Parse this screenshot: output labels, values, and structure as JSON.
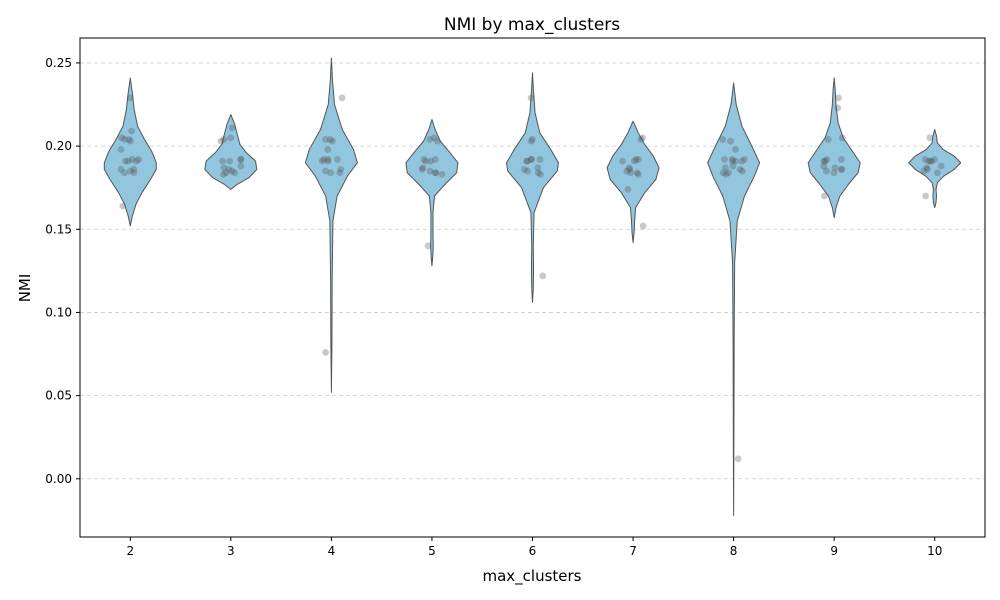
{
  "chart_data": {
    "type": "violin",
    "title": "NMI by max_clusters",
    "xlabel": "max_clusters",
    "ylabel": "NMI",
    "categories": [
      "2",
      "3",
      "4",
      "5",
      "6",
      "7",
      "8",
      "9",
      "10"
    ],
    "ylim": [
      -0.035,
      0.265
    ],
    "yticks": [
      0.0,
      0.05,
      0.1,
      0.15,
      0.2,
      0.25
    ],
    "ytick_labels": [
      "0.00",
      "0.05",
      "0.10",
      "0.15",
      "0.20",
      "0.25"
    ],
    "grid": "y-dashed",
    "violin_color": "#92c5de",
    "edge_color": "#555555",
    "point_color": "#555555",
    "violins": [
      {
        "category": "2",
        "ymin": 0.152,
        "ymax": 0.241,
        "profile": [
          [
            0.152,
            0.0
          ],
          [
            0.158,
            0.08
          ],
          [
            0.165,
            0.22
          ],
          [
            0.172,
            0.45
          ],
          [
            0.18,
            0.78
          ],
          [
            0.186,
            1.0
          ],
          [
            0.19,
            1.0
          ],
          [
            0.197,
            0.82
          ],
          [
            0.204,
            0.55
          ],
          [
            0.212,
            0.28
          ],
          [
            0.222,
            0.15
          ],
          [
            0.232,
            0.08
          ],
          [
            0.241,
            0.0
          ]
        ]
      },
      {
        "category": "3",
        "ymin": 0.174,
        "ymax": 0.219,
        "profile": [
          [
            0.174,
            0.0
          ],
          [
            0.177,
            0.25
          ],
          [
            0.181,
            0.7
          ],
          [
            0.186,
            1.0
          ],
          [
            0.191,
            0.95
          ],
          [
            0.196,
            0.6
          ],
          [
            0.201,
            0.35
          ],
          [
            0.207,
            0.25
          ],
          [
            0.213,
            0.15
          ],
          [
            0.219,
            0.0
          ]
        ]
      },
      {
        "category": "4",
        "ymin": 0.052,
        "ymax": 0.253,
        "profile": [
          [
            0.052,
            0.0
          ],
          [
            0.08,
            0.02
          ],
          [
            0.12,
            0.03
          ],
          [
            0.155,
            0.06
          ],
          [
            0.17,
            0.22
          ],
          [
            0.182,
            0.62
          ],
          [
            0.19,
            1.0
          ],
          [
            0.198,
            0.85
          ],
          [
            0.21,
            0.42
          ],
          [
            0.225,
            0.12
          ],
          [
            0.24,
            0.04
          ],
          [
            0.253,
            0.0
          ]
        ]
      },
      {
        "category": "5",
        "ymin": 0.128,
        "ymax": 0.216,
        "profile": [
          [
            0.128,
            0.0
          ],
          [
            0.133,
            0.03
          ],
          [
            0.14,
            0.05
          ],
          [
            0.147,
            0.04
          ],
          [
            0.16,
            0.04
          ],
          [
            0.17,
            0.1
          ],
          [
            0.177,
            0.5
          ],
          [
            0.184,
            0.95
          ],
          [
            0.19,
            1.0
          ],
          [
            0.196,
            0.7
          ],
          [
            0.203,
            0.32
          ],
          [
            0.21,
            0.12
          ],
          [
            0.216,
            0.0
          ]
        ]
      },
      {
        "category": "6",
        "ymin": 0.106,
        "ymax": 0.244,
        "profile": [
          [
            0.106,
            0.0
          ],
          [
            0.115,
            0.03
          ],
          [
            0.125,
            0.04
          ],
          [
            0.14,
            0.03
          ],
          [
            0.16,
            0.06
          ],
          [
            0.175,
            0.42
          ],
          [
            0.185,
            0.95
          ],
          [
            0.19,
            1.0
          ],
          [
            0.198,
            0.7
          ],
          [
            0.208,
            0.28
          ],
          [
            0.22,
            0.1
          ],
          [
            0.233,
            0.04
          ],
          [
            0.244,
            0.0
          ]
        ]
      },
      {
        "category": "7",
        "ymin": 0.142,
        "ymax": 0.215,
        "profile": [
          [
            0.142,
            0.0
          ],
          [
            0.148,
            0.04
          ],
          [
            0.155,
            0.06
          ],
          [
            0.163,
            0.1
          ],
          [
            0.172,
            0.45
          ],
          [
            0.18,
            0.88
          ],
          [
            0.187,
            1.0
          ],
          [
            0.194,
            0.78
          ],
          [
            0.201,
            0.45
          ],
          [
            0.208,
            0.2
          ],
          [
            0.215,
            0.0
          ]
        ]
      },
      {
        "category": "8",
        "ymin": -0.022,
        "ymax": 0.238,
        "profile": [
          [
            -0.022,
            0.0
          ],
          [
            0.02,
            0.01
          ],
          [
            0.08,
            0.02
          ],
          [
            0.13,
            0.04
          ],
          [
            0.155,
            0.14
          ],
          [
            0.17,
            0.42
          ],
          [
            0.182,
            0.8
          ],
          [
            0.19,
            1.0
          ],
          [
            0.2,
            0.7
          ],
          [
            0.212,
            0.32
          ],
          [
            0.225,
            0.1
          ],
          [
            0.238,
            0.0
          ]
        ]
      },
      {
        "category": "9",
        "ymin": 0.157,
        "ymax": 0.241,
        "profile": [
          [
            0.157,
            0.0
          ],
          [
            0.163,
            0.07
          ],
          [
            0.17,
            0.22
          ],
          [
            0.177,
            0.55
          ],
          [
            0.184,
            0.92
          ],
          [
            0.19,
            1.0
          ],
          [
            0.197,
            0.7
          ],
          [
            0.205,
            0.35
          ],
          [
            0.214,
            0.15
          ],
          [
            0.225,
            0.07
          ],
          [
            0.234,
            0.04
          ],
          [
            0.241,
            0.0
          ]
        ]
      },
      {
        "category": "10",
        "ymin": 0.163,
        "ymax": 0.21,
        "profile": [
          [
            0.163,
            0.0
          ],
          [
            0.166,
            0.05
          ],
          [
            0.17,
            0.07
          ],
          [
            0.174,
            0.05
          ],
          [
            0.178,
            0.1
          ],
          [
            0.182,
            0.35
          ],
          [
            0.186,
            0.75
          ],
          [
            0.19,
            1.0
          ],
          [
            0.194,
            0.75
          ],
          [
            0.198,
            0.32
          ],
          [
            0.202,
            0.1
          ],
          [
            0.206,
            0.07
          ],
          [
            0.21,
            0.0
          ]
        ]
      }
    ],
    "points": [
      {
        "category": "2",
        "values": [
          0.229,
          0.209,
          0.205,
          0.204,
          0.204,
          0.203,
          0.198,
          0.192,
          0.192,
          0.191,
          0.191,
          0.191,
          0.186,
          0.186,
          0.185,
          0.184,
          0.184,
          0.164
        ]
      },
      {
        "category": "3",
        "values": [
          0.211,
          0.205,
          0.204,
          0.203,
          0.192,
          0.192,
          0.191,
          0.191,
          0.188,
          0.187,
          0.186,
          0.185,
          0.184,
          0.184,
          0.183
        ]
      },
      {
        "category": "4",
        "values": [
          0.229,
          0.204,
          0.204,
          0.203,
          0.198,
          0.192,
          0.192,
          0.192,
          0.191,
          0.191,
          0.186,
          0.185,
          0.184,
          0.184,
          0.076
        ]
      },
      {
        "category": "5",
        "values": [
          0.205,
          0.204,
          0.203,
          0.192,
          0.192,
          0.191,
          0.191,
          0.187,
          0.186,
          0.185,
          0.184,
          0.184,
          0.183,
          0.14
        ]
      },
      {
        "category": "6",
        "values": [
          0.229,
          0.204,
          0.203,
          0.192,
          0.192,
          0.192,
          0.191,
          0.191,
          0.187,
          0.186,
          0.185,
          0.184,
          0.183,
          0.122
        ]
      },
      {
        "category": "7",
        "values": [
          0.205,
          0.204,
          0.192,
          0.192,
          0.191,
          0.191,
          0.187,
          0.186,
          0.185,
          0.184,
          0.184,
          0.183,
          0.174,
          0.152
        ]
      },
      {
        "category": "8",
        "values": [
          0.204,
          0.203,
          0.198,
          0.192,
          0.192,
          0.192,
          0.191,
          0.191,
          0.191,
          0.188,
          0.187,
          0.186,
          0.185,
          0.184,
          0.184,
          0.183,
          0.012
        ]
      },
      {
        "category": "9",
        "values": [
          0.229,
          0.223,
          0.205,
          0.204,
          0.192,
          0.192,
          0.191,
          0.191,
          0.188,
          0.187,
          0.186,
          0.186,
          0.185,
          0.184,
          0.17
        ]
      },
      {
        "category": "10",
        "values": [
          0.205,
          0.192,
          0.192,
          0.191,
          0.191,
          0.191,
          0.188,
          0.187,
          0.186,
          0.185,
          0.184,
          0.17
        ]
      }
    ]
  }
}
